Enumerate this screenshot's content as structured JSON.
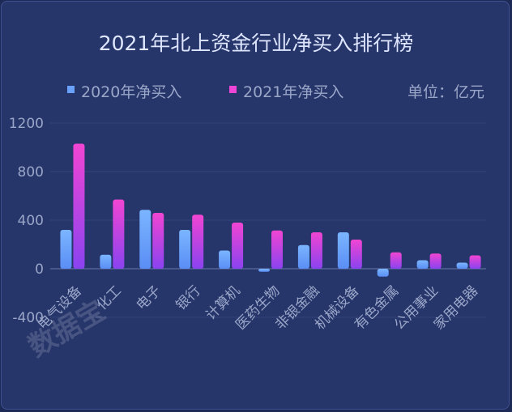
{
  "chart_data": {
    "type": "bar",
    "title": "2021年北上资金行业净买入排行榜",
    "unit_label": "单位：亿元",
    "categories": [
      "电气设备",
      "化工",
      "电子",
      "银行",
      "计算机",
      "医药生物",
      "非银金融",
      "机械设备",
      "有色金属",
      "公用事业",
      "家用电器"
    ],
    "series": [
      {
        "name": "2020年净买入",
        "values": [
          320,
          115,
          485,
          320,
          150,
          -25,
          195,
          300,
          -65,
          70,
          50
        ]
      },
      {
        "name": "2021年净买入",
        "values": [
          1030,
          570,
          460,
          445,
          380,
          315,
          300,
          240,
          135,
          125,
          110
        ]
      }
    ],
    "yticks": [
      1200,
      800,
      400,
      0,
      -400
    ],
    "ylim": [
      -400,
      1200
    ],
    "grid": true,
    "legend_position": "top",
    "watermark": "数据宝",
    "colors": {
      "s1_top": "#7bb5ff",
      "s1_bottom": "#5a8ef5",
      "s2_top": "#f145d2",
      "s2_bottom": "#8a43f0",
      "text": "#9aa6c8",
      "title": "#dfe6ff",
      "grid": "#34437a"
    }
  }
}
